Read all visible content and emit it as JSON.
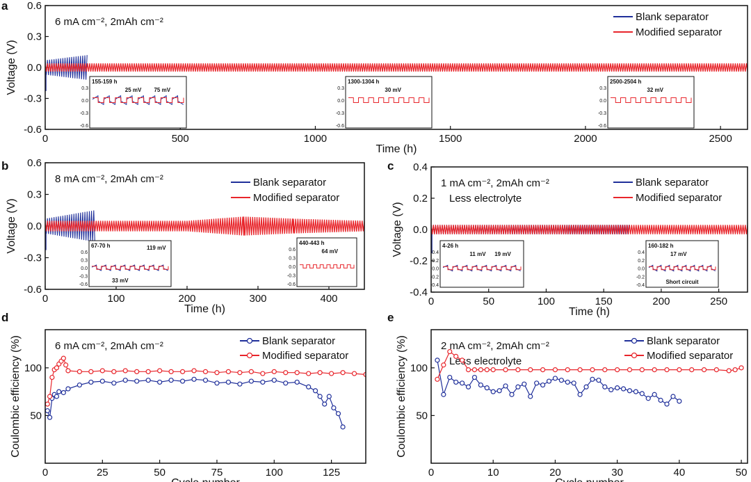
{
  "colors": {
    "blank": "#1f2f9a",
    "modified": "#e8252b",
    "axis": "#111111"
  },
  "chart_data": [
    {
      "id": "a",
      "panel_label": "a",
      "type": "line",
      "title": "6 mA cm⁻², 2mAh cm⁻²",
      "xlabel": "Time (h)",
      "ylabel": "Voltage (V)",
      "xlim": [
        0,
        2600
      ],
      "ylim": [
        -0.6,
        0.6
      ],
      "xticks": [
        0,
        500,
        1000,
        1500,
        2000,
        2500
      ],
      "yticks": [
        -0.6,
        -0.3,
        0.0,
        0.3,
        0.6
      ],
      "legend": [
        "Blank separator",
        "Modified separator"
      ],
      "series": [
        {
          "name": "Blank separator",
          "x": [
            0,
            155
          ],
          "envelope_upper": [
            0.07,
            0.12
          ],
          "envelope_lower": [
            -0.07,
            -0.12
          ]
        },
        {
          "name": "Modified separator",
          "x": [
            0,
            2600
          ],
          "envelope_upper": [
            0.04,
            0.04
          ],
          "envelope_lower": [
            -0.04,
            -0.04
          ]
        }
      ],
      "insets": [
        {
          "label": "155-159 h",
          "yticks": [
            "0.3",
            "0.0",
            "-0.3",
            "-0.6"
          ],
          "annotations": [
            {
              "text": "25 mV",
              "color": "modified"
            },
            {
              "text": "75 mV",
              "color": "blank"
            }
          ],
          "series": [
            "blank",
            "modified"
          ]
        },
        {
          "label": "1300-1304 h",
          "yticks": [
            "0.3",
            "0.0",
            "-0.3",
            "-0.6"
          ],
          "annotations": [
            {
              "text": "30 mV",
              "color": "modified"
            }
          ],
          "series": [
            "modified"
          ]
        },
        {
          "label": "2500-2504 h",
          "yticks": [
            "0.3",
            "0.0",
            "-0.3",
            "-0.6"
          ],
          "annotations": [
            {
              "text": "32 mV",
              "color": "modified"
            }
          ],
          "series": [
            "modified"
          ]
        }
      ]
    },
    {
      "id": "b",
      "panel_label": "b",
      "type": "line",
      "title": "8 mA cm⁻², 2mAh cm⁻²",
      "xlabel": "Time (h)",
      "ylabel": "Voltage (V)",
      "xlim": [
        0,
        450
      ],
      "ylim": [
        -0.6,
        0.6
      ],
      "xticks": [
        0,
        100,
        200,
        300,
        400
      ],
      "yticks": [
        -0.6,
        -0.3,
        0.0,
        0.3,
        0.6
      ],
      "legend": [
        "Blank separator",
        "Modified separator"
      ],
      "series": [
        {
          "name": "Blank separator",
          "x": [
            0,
            70
          ],
          "envelope_upper": [
            0.07,
            0.15
          ],
          "envelope_lower": [
            -0.07,
            -0.15
          ]
        },
        {
          "name": "Modified separator",
          "x": [
            0,
            200,
            280,
            350,
            450
          ],
          "envelope_upper": [
            0.05,
            0.05,
            0.09,
            0.07,
            0.05
          ],
          "envelope_lower": [
            -0.05,
            -0.05,
            -0.09,
            -0.07,
            -0.05
          ]
        }
      ],
      "insets": [
        {
          "label": "67-70 h",
          "yticks": [
            "0.6",
            "0.3",
            "0.0",
            "-0.3",
            "-0.6"
          ],
          "annotations": [
            {
              "text": "119 mV",
              "color": "blank"
            },
            {
              "text": "33 mV",
              "color": "modified"
            }
          ],
          "series": [
            "blank",
            "modified"
          ]
        },
        {
          "label": "440-443 h",
          "yticks": [
            "0.6",
            "0.3",
            "0.0",
            "-0.3",
            "-0.6"
          ],
          "annotations": [
            {
              "text": "64 mV",
              "color": "modified"
            }
          ],
          "series": [
            "modified"
          ]
        }
      ]
    },
    {
      "id": "c",
      "panel_label": "c",
      "type": "line",
      "title": "1 mA cm⁻², 2mAh cm⁻²",
      "subtitle": "Less electrolyte",
      "xlabel": "Time (h)",
      "ylabel": "Voltage (V)",
      "xlim": [
        0,
        275
      ],
      "ylim": [
        -0.4,
        0.4
      ],
      "xticks": [
        0,
        50,
        100,
        150,
        200,
        250
      ],
      "yticks": [
        -0.4,
        -0.2,
        0.0,
        0.2,
        0.4
      ],
      "legend": [
        "Blank separator",
        "Modified separator"
      ],
      "series": [
        {
          "name": "Blank separator",
          "x": [
            0,
            172
          ],
          "envelope_upper": [
            0.03,
            0.03
          ],
          "envelope_lower": [
            -0.03,
            -0.03
          ]
        },
        {
          "name": "Modified separator",
          "x": [
            0,
            275
          ],
          "envelope_upper": [
            0.03,
            0.03
          ],
          "envelope_lower": [
            -0.03,
            -0.03
          ]
        }
      ],
      "insets": [
        {
          "label": "4-26 h",
          "yticks": [
            "0.4",
            "0.2",
            "0.0",
            "-0.2",
            "-0.4"
          ],
          "annotations": [
            {
              "text": "11 mV",
              "color": "modified"
            },
            {
              "text": "19 mV",
              "color": "blank"
            }
          ],
          "series": [
            "blank",
            "modified"
          ]
        },
        {
          "label": "160-182 h",
          "yticks": [
            "0.4",
            "0.2",
            "0.0",
            "-0.2",
            "-0.4"
          ],
          "annotations": [
            {
              "text": "17 mV",
              "color": "modified"
            },
            {
              "text": "Short circuit",
              "color": "blank"
            }
          ],
          "series": [
            "blank",
            "modified"
          ]
        }
      ]
    },
    {
      "id": "d",
      "panel_label": "d",
      "type": "line",
      "title": "6 mA cm⁻², 2mAh cm⁻²",
      "xlabel": "Cycle number",
      "ylabel": "Coulombic efficiency (%)",
      "xlim": [
        0,
        140
      ],
      "ylim": [
        0,
        140
      ],
      "xticks": [
        0,
        25,
        50,
        75,
        100,
        125
      ],
      "yticks": [
        50,
        100
      ],
      "legend": [
        "Blank separator",
        "Modified separator"
      ],
      "series": [
        {
          "name": "Blank separator",
          "x": [
            1,
            2,
            3,
            4,
            5,
            6,
            8,
            10,
            15,
            20,
            25,
            30,
            35,
            40,
            45,
            50,
            55,
            60,
            65,
            70,
            75,
            80,
            85,
            90,
            95,
            100,
            105,
            110,
            115,
            118,
            120,
            122,
            124,
            126,
            128,
            130
          ],
          "y": [
            55,
            48,
            68,
            72,
            70,
            75,
            74,
            78,
            82,
            85,
            86,
            84,
            87,
            86,
            87,
            85,
            87,
            86,
            88,
            87,
            84,
            85,
            83,
            86,
            85,
            87,
            84,
            85,
            80,
            76,
            70,
            62,
            70,
            58,
            52,
            38
          ]
        },
        {
          "name": "Modified separator",
          "x": [
            1,
            2,
            3,
            4,
            5,
            6,
            7,
            8,
            9,
            10,
            15,
            20,
            25,
            30,
            35,
            40,
            45,
            50,
            55,
            60,
            65,
            70,
            75,
            80,
            85,
            90,
            95,
            100,
            105,
            110,
            115,
            120,
            125,
            130,
            135,
            140
          ],
          "y": [
            62,
            70,
            90,
            98,
            100,
            104,
            107,
            110,
            103,
            97,
            96,
            96,
            97,
            96,
            97,
            96,
            96,
            97,
            96,
            96,
            97,
            96,
            95,
            96,
            95,
            96,
            94,
            96,
            95,
            95,
            94,
            95,
            94,
            95,
            94,
            93
          ]
        }
      ]
    },
    {
      "id": "e",
      "panel_label": "e",
      "type": "line",
      "title": "2 mA cm⁻², 2mAh cm⁻²",
      "subtitle": "Less electrolyte",
      "xlabel": "Cycle number",
      "ylabel": "Coulombic efficiency (%)",
      "xlim": [
        0,
        51
      ],
      "ylim": [
        0,
        140
      ],
      "xticks": [
        0,
        10,
        20,
        30,
        40,
        50
      ],
      "yticks": [
        50,
        100
      ],
      "legend": [
        "Blank separator",
        "Modified separator"
      ],
      "series": [
        {
          "name": "Blank separator",
          "x": [
            1,
            2,
            3,
            4,
            5,
            6,
            7,
            8,
            9,
            10,
            11,
            12,
            13,
            14,
            15,
            16,
            17,
            18,
            19,
            20,
            21,
            22,
            23,
            24,
            25,
            26,
            27,
            28,
            29,
            30,
            31,
            32,
            33,
            34,
            35,
            36,
            37,
            38,
            39,
            40
          ],
          "y": [
            108,
            72,
            90,
            85,
            84,
            80,
            90,
            82,
            79,
            75,
            76,
            81,
            72,
            80,
            83,
            70,
            84,
            82,
            86,
            89,
            87,
            85,
            84,
            72,
            80,
            88,
            87,
            80,
            77,
            79,
            78,
            76,
            75,
            73,
            68,
            72,
            66,
            62,
            70,
            65
          ]
        },
        {
          "name": "Modified separator",
          "x": [
            1,
            2,
            3,
            4,
            5,
            6,
            7,
            8,
            9,
            10,
            12,
            14,
            16,
            18,
            20,
            22,
            24,
            26,
            28,
            30,
            32,
            34,
            36,
            38,
            40,
            42,
            44,
            46,
            48,
            49,
            50
          ],
          "y": [
            88,
            103,
            117,
            112,
            108,
            98,
            98,
            98,
            98,
            98,
            98,
            98,
            98,
            98,
            98,
            98,
            98,
            98,
            98,
            98,
            98,
            98,
            98,
            98,
            98,
            98,
            98,
            98,
            97,
            98,
            100
          ]
        }
      ]
    }
  ]
}
